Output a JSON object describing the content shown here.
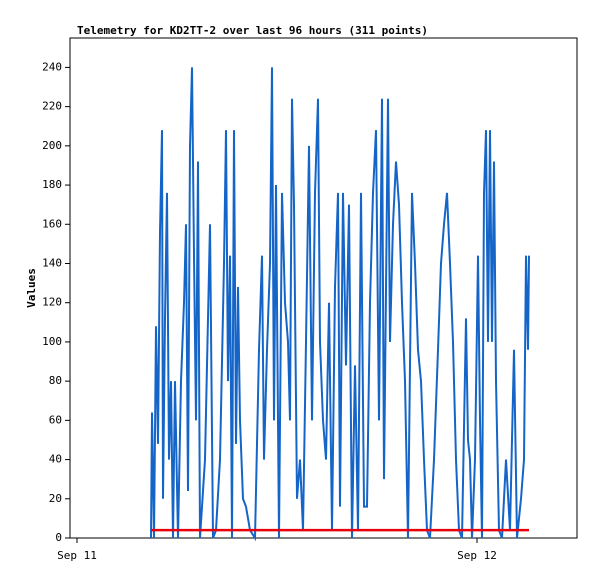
{
  "chart_data": {
    "type": "line",
    "title": "Telemetry for KD2TT-2 over last 96 hours (311 points)",
    "ylabel": "Values",
    "xlim": [
      -0.42,
      30
    ],
    "ylim": [
      0,
      255
    ],
    "xticks": [
      {
        "value": 0,
        "label": "Sep 11"
      },
      {
        "value": 24,
        "label": "Sep 12"
      }
    ],
    "yticks": [
      0,
      20,
      40,
      60,
      80,
      100,
      120,
      140,
      160,
      180,
      200,
      220,
      240
    ],
    "series": [
      {
        "color": "#1565c8",
        "x": [
          4.44,
          4.5,
          4.62,
          4.74,
          4.86,
          4.98,
          5.1,
          5.16,
          5.28,
          5.4,
          5.52,
          5.64,
          5.76,
          5.88,
          6.06,
          6.24,
          6.42,
          6.54,
          6.66,
          6.78,
          6.9,
          7.02,
          7.14,
          7.26,
          7.38,
          7.68,
          7.98,
          8.16,
          8.34,
          8.58,
          8.82,
          8.94,
          9.06,
          9.18,
          9.3,
          9.42,
          9.54,
          9.66,
          9.78,
          9.96,
          10.14,
          10.38,
          10.68,
          10.92,
          11.1,
          11.22,
          11.4,
          11.58,
          11.7,
          11.82,
          11.94,
          12.12,
          12.3,
          12.48,
          12.66,
          12.78,
          12.9,
          13.02,
          13.2,
          13.38,
          13.56,
          13.74,
          13.92,
          14.1,
          14.28,
          14.46,
          14.58,
          14.76,
          14.94,
          15.12,
          15.3,
          15.48,
          15.66,
          15.78,
          15.96,
          16.14,
          16.32,
          16.5,
          16.68,
          16.86,
          17.04,
          17.22,
          17.4,
          17.58,
          17.76,
          17.94,
          18.12,
          18.3,
          18.42,
          18.66,
          18.78,
          18.96,
          19.14,
          19.32,
          19.5,
          19.68,
          19.86,
          20.1,
          20.28,
          20.46,
          20.64,
          20.82,
          21.0,
          21.18,
          21.42,
          21.66,
          21.84,
          22.02,
          22.2,
          22.38,
          22.56,
          22.74,
          22.92,
          23.1,
          23.34,
          23.46,
          23.58,
          23.7,
          23.88,
          24.06,
          24.18,
          24.3,
          24.42,
          24.54,
          24.66,
          24.78,
          24.9,
          25.02,
          25.14,
          25.32,
          25.5,
          25.74,
          25.98,
          26.22,
          26.4,
          26.64,
          26.82,
          26.94,
          27.06,
          27.12
        ],
        "values": [
          0,
          64,
          0,
          108,
          48,
          156,
          208,
          20,
          112,
          176,
          40,
          80,
          0,
          80,
          0,
          80,
          120,
          160,
          24,
          200,
          240,
          144,
          60,
          192,
          0,
          40,
          160,
          0,
          4,
          40,
          140,
          208,
          80,
          144,
          0,
          208,
          48,
          128,
          60,
          20,
          16,
          4,
          0,
          96,
          144,
          40,
          96,
          140,
          240,
          60,
          180,
          0,
          176,
          120,
          100,
          60,
          224,
          170,
          20,
          40,
          4,
          100,
          200,
          60,
          176,
          224,
          100,
          60,
          40,
          120,
          4,
          128,
          176,
          16,
          176,
          88,
          170,
          0,
          88,
          4,
          176,
          16,
          16,
          120,
          176,
          208,
          60,
          224,
          30,
          224,
          100,
          160,
          192,
          170,
          120,
          80,
          0,
          176,
          140,
          96,
          80,
          40,
          4,
          0,
          40,
          96,
          140,
          160,
          176,
          140,
          100,
          40,
          4,
          0,
          112,
          50,
          40,
          0,
          40,
          144,
          60,
          0,
          176,
          208,
          100,
          208,
          100,
          192,
          80,
          4,
          0,
          40,
          4,
          96,
          0,
          20,
          40,
          144,
          96,
          144
        ]
      },
      {
        "color": "#e8000b",
        "x": [
          4.44,
          27.12
        ],
        "values": [
          4,
          4
        ]
      }
    ]
  }
}
